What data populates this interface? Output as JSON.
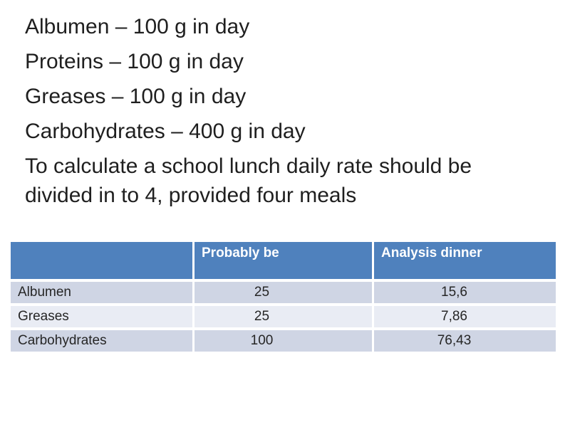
{
  "intro": {
    "lines": [
      "Albumen – 100 g in day",
      "Proteins – 100 g in day",
      "Greases – 100 g in day",
      "Carbohydrates – 400 g in day",
      "To calculate a school lunch daily rate should be divided in to 4, provided four meals"
    ]
  },
  "table": {
    "columns": [
      "",
      "Probably be",
      "Analysis dinner"
    ],
    "rows": [
      {
        "label": "Albumen",
        "probably_be": "25",
        "analysis_dinner": "15,6"
      },
      {
        "label": "Greases",
        "probably_be": "25",
        "analysis_dinner": "7,86"
      },
      {
        "label": "Carbohydrates",
        "probably_be": "100",
        "analysis_dinner": "76,43"
      }
    ]
  },
  "colors": {
    "header_bg": "#4F81BD",
    "header_text": "#FFFFFF",
    "row_band_dark": "#CFD5E4",
    "row_band_light": "#E9ECF4",
    "body_text": "#1F1F1F",
    "cell_text": "#262626",
    "background": "#FFFFFF"
  }
}
